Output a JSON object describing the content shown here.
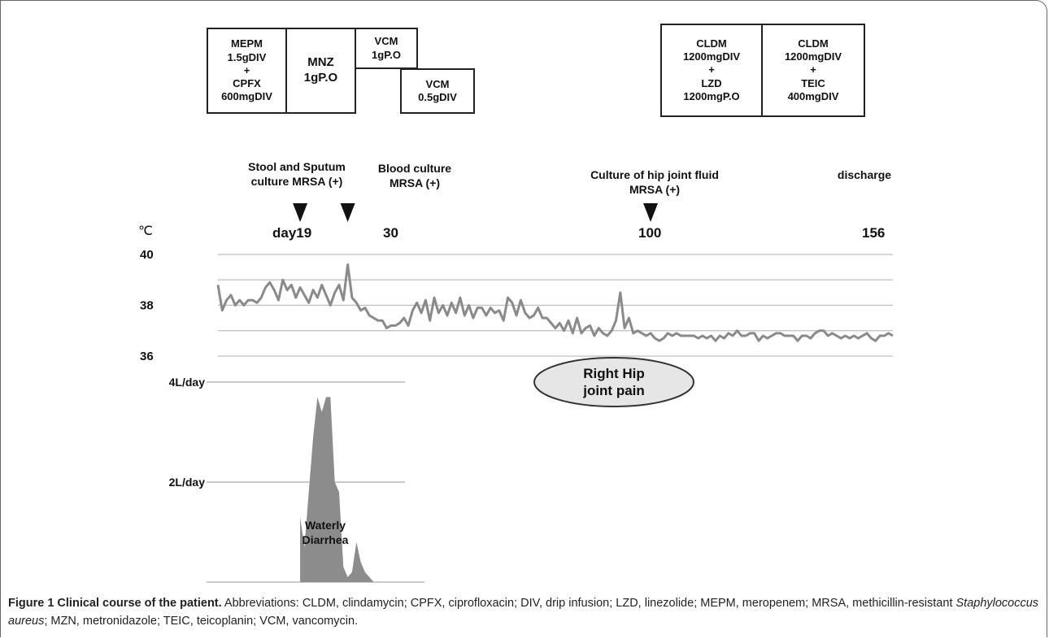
{
  "treatments": [
    {
      "id": "mepm",
      "text": "MEPM\n1.5gDIV\n+\nCPFX\n600mgDIV"
    },
    {
      "id": "mnz",
      "text": "MNZ\n1gP.O"
    },
    {
      "id": "vcm1",
      "text": "VCM\n1gP.O"
    },
    {
      "id": "vcm2",
      "text": "VCM\n0.5gDIV"
    },
    {
      "id": "cldm-lzd",
      "text": "CLDM\n1200mgDIV\n+\nLZD\n1200mgP.O"
    },
    {
      "id": "cldm-teic",
      "text": "CLDM\n1200mgDIV\n+\nTEIC\n400mgDIV"
    }
  ],
  "events": [
    {
      "id": "stool",
      "text": "Stool and Sputum\nculture MRSA (+)",
      "day_label": "day19"
    },
    {
      "id": "blood",
      "text": "Blood culture\nMRSA (+)",
      "day_label": "30"
    },
    {
      "id": "hip",
      "text": "Culture of hip joint fluid\nMRSA (+)",
      "day_label": "100"
    },
    {
      "id": "discharge",
      "text": "discharge",
      "day_label": "156"
    }
  ],
  "temp_unit": "℃",
  "annotations": {
    "hip_pain": "Right Hip\njoint pain",
    "diarrhea": "Waterly\nDiarrhea"
  },
  "colors": {
    "temperature_line": "#8a8a8a",
    "diarrhea_fill": "#8c8c8c",
    "ellipse_fill": "#e6e6e6"
  },
  "chart_data": [
    {
      "type": "line",
      "ylabel": "℃",
      "yticks": [
        "40",
        "38",
        "36"
      ],
      "ylim": [
        36,
        40
      ],
      "xlim": [
        0,
        156
      ],
      "grid": true,
      "x": [
        0,
        1,
        2,
        3,
        4,
        5,
        6,
        7,
        8,
        9,
        10,
        11,
        12,
        13,
        14,
        15,
        16,
        17,
        18,
        19,
        20,
        21,
        22,
        23,
        24,
        25,
        26,
        27,
        28,
        29,
        30,
        31,
        32,
        33,
        34,
        35,
        36,
        37,
        38,
        39,
        40,
        41,
        42,
        43,
        44,
        45,
        46,
        47,
        48,
        49,
        50,
        51,
        52,
        53,
        54,
        55,
        56,
        57,
        58,
        59,
        60,
        61,
        62,
        63,
        64,
        65,
        66,
        67,
        68,
        69,
        70,
        71,
        72,
        73,
        74,
        75,
        76,
        77,
        78,
        79,
        80,
        81,
        82,
        83,
        84,
        85,
        86,
        87,
        88,
        89,
        90,
        91,
        92,
        93,
        94,
        95,
        96,
        97,
        98,
        99,
        100,
        101,
        102,
        103,
        104,
        105,
        106,
        107,
        108,
        109,
        110,
        111,
        112,
        113,
        114,
        115,
        116,
        117,
        118,
        119,
        120,
        121,
        122,
        123,
        124,
        125,
        126,
        127,
        128,
        129,
        130,
        131,
        132,
        133,
        134,
        135,
        136,
        137,
        138,
        139,
        140,
        141,
        142,
        143,
        144,
        145,
        146,
        147,
        148,
        149,
        150,
        151,
        152,
        153,
        154,
        155,
        156
      ],
      "y": [
        38.8,
        37.8,
        38.2,
        38.4,
        38.0,
        38.2,
        38.0,
        38.2,
        38.2,
        38.1,
        38.3,
        38.7,
        38.9,
        38.6,
        38.2,
        39.0,
        38.6,
        38.8,
        38.3,
        38.7,
        38.4,
        38.1,
        38.6,
        38.3,
        38.8,
        38.4,
        38.0,
        38.5,
        38.8,
        38.2,
        39.6,
        38.3,
        38.1,
        37.8,
        37.9,
        37.6,
        37.5,
        37.4,
        37.4,
        37.1,
        37.2,
        37.2,
        37.3,
        37.5,
        37.2,
        37.8,
        38.1,
        37.7,
        38.2,
        37.4,
        38.3,
        37.7,
        38.0,
        37.6,
        38.1,
        37.7,
        38.3,
        37.6,
        38.0,
        37.5,
        37.9,
        37.9,
        37.6,
        37.9,
        37.7,
        37.8,
        37.4,
        38.3,
        38.1,
        37.6,
        38.2,
        37.7,
        37.5,
        37.6,
        37.9,
        37.5,
        37.5,
        37.3,
        37.1,
        37.3,
        37.0,
        37.4,
        36.9,
        37.5,
        36.9,
        37.1,
        37.2,
        36.8,
        37.1,
        36.9,
        36.8,
        37.0,
        37.4,
        38.5,
        37.1,
        37.5,
        36.9,
        37.0,
        36.9,
        36.8,
        36.9,
        36.7,
        36.6,
        36.7,
        36.9,
        36.8,
        36.9,
        36.8,
        36.8,
        36.8,
        36.8,
        36.7,
        36.8,
        36.7,
        36.8,
        36.6,
        36.8,
        36.7,
        36.9,
        36.8,
        37.0,
        36.8,
        36.8,
        36.9,
        36.9,
        36.6,
        36.8,
        36.7,
        36.8,
        36.9,
        36.9,
        36.8,
        36.8,
        36.8,
        36.6,
        36.8,
        36.8,
        36.7,
        36.9,
        37.0,
        37.0,
        36.8,
        36.9,
        36.8,
        36.7,
        36.8,
        36.7,
        36.8,
        36.7,
        36.8,
        36.9,
        36.7,
        36.6,
        36.8,
        36.8,
        36.9,
        36.8
      ]
    },
    {
      "type": "area",
      "name": "Waterly Diarrhea",
      "yticks": [
        "4L/day",
        "2L/day"
      ],
      "ylim": [
        0,
        4
      ],
      "x": [
        19,
        20,
        21,
        22,
        23,
        24,
        25,
        26,
        27,
        28,
        29,
        30,
        31,
        32,
        33,
        34,
        35,
        36
      ],
      "y": [
        1.3,
        0.7,
        1.8,
        2.9,
        3.7,
        3.4,
        3.7,
        3.7,
        2.0,
        1.8,
        0.3,
        0.1,
        0.2,
        0.8,
        0.4,
        0.2,
        0.1,
        0.0
      ]
    }
  ]
}
